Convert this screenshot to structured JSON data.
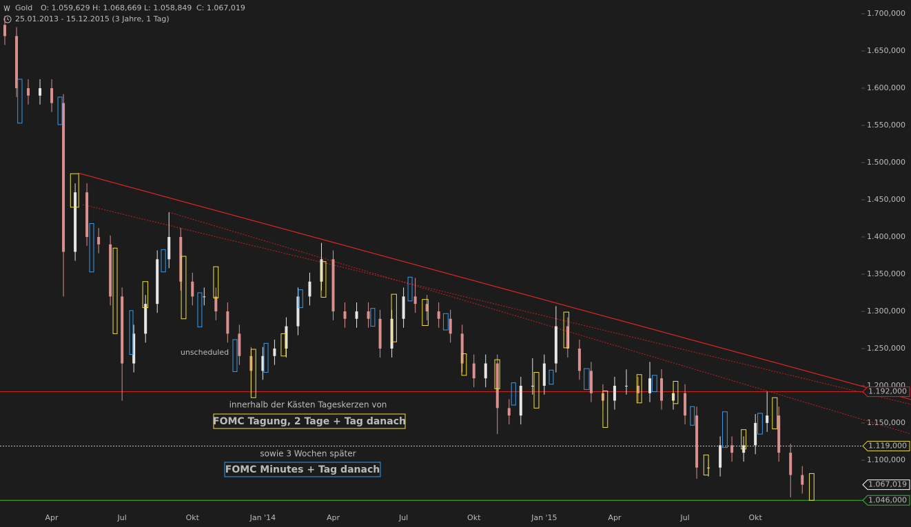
{
  "chart_data": {
    "type": "candlestick",
    "title": "Gold",
    "ohlc_summary": [
      {
        "value": 1059.629,
        "label": "O: 1.059,629"
      },
      {
        "value": 1068.669,
        "label": "H: 1.068,669"
      },
      {
        "value": 1058.849,
        "label": "L: 1.058,849"
      },
      {
        "value": 1067.019,
        "label": "C: 1.067,019"
      }
    ],
    "subtitle": "25.01.2013 - 15.12.2015 (3 Jahre, 1 Tag)",
    "categories": [
      null,
      null,
      null,
      null,
      "Apr",
      null,
      null,
      null,
      null,
      null,
      "Jul",
      null,
      null,
      null,
      null,
      null,
      "Okt",
      null,
      null,
      null,
      null,
      null,
      "Jan '14",
      null,
      null,
      null,
      null,
      null,
      "Apr",
      null,
      null,
      null,
      null,
      null,
      "Jul",
      null,
      null,
      null,
      null,
      null,
      "Okt",
      null,
      null,
      null,
      null,
      null,
      "Jan '15",
      null,
      null,
      null,
      null,
      null,
      "Apr",
      null,
      null,
      null,
      null,
      null,
      "Jul",
      null,
      null,
      null,
      null,
      null,
      "Okt",
      null,
      null,
      null,
      null
    ],
    "open": [
      1685,
      1670,
      1600,
      1590,
      1600,
      1580,
      1380,
      1460,
      1400,
      1390,
      1320,
      1230,
      1270,
      1310,
      1370,
      1400,
      1340,
      1320,
      1320,
      1300,
      1270,
      1240,
      1220,
      1240,
      1250,
      1280,
      1320,
      1340,
      1370,
      1300,
      1290,
      1300,
      1290,
      1250,
      1290,
      1320,
      1310,
      1300,
      1290,
      1270,
      1230,
      1210,
      1230,
      1170,
      1160,
      1200,
      1200,
      1230,
      1280,
      1250,
      1220,
      1190,
      1180,
      1200,
      1200,
      1190,
      1210,
      1180,
      1190,
      1160,
      1090,
      1090,
      1120,
      1110,
      1120,
      1150,
      1160,
      1110,
      1080
    ],
    "high": [
      1697,
      1682,
      1612,
      1612,
      1612,
      1592,
      1472,
      1472,
      1412,
      1402,
      1332,
      1282,
      1322,
      1382,
      1433,
      1412,
      1352,
      1332,
      1332,
      1312,
      1282,
      1252,
      1252,
      1262,
      1292,
      1332,
      1352,
      1392,
      1382,
      1312,
      1312,
      1312,
      1302,
      1302,
      1332,
      1345,
      1322,
      1312,
      1302,
      1282,
      1242,
      1242,
      1242,
      1182,
      1212,
      1237,
      1242,
      1307,
      1292,
      1262,
      1232,
      1202,
      1212,
      1222,
      1212,
      1232,
      1222,
      1202,
      1202,
      1172,
      1102,
      1132,
      1132,
      1132,
      1162,
      1192,
      1172,
      1122,
      1092
    ],
    "low": [
      1658,
      1588,
      1578,
      1578,
      1568,
      1320,
      1368,
      1388,
      1378,
      1308,
      1180,
      1218,
      1258,
      1298,
      1358,
      1328,
      1308,
      1308,
      1288,
      1258,
      1228,
      1190,
      1208,
      1228,
      1238,
      1268,
      1308,
      1328,
      1288,
      1278,
      1278,
      1278,
      1238,
      1238,
      1278,
      1298,
      1288,
      1278,
      1258,
      1218,
      1198,
      1198,
      1135,
      1148,
      1148,
      1188,
      1188,
      1218,
      1238,
      1208,
      1178,
      1168,
      1168,
      1188,
      1178,
      1178,
      1168,
      1168,
      1148,
      1075,
      1078,
      1078,
      1098,
      1098,
      1108,
      1138,
      1098,
      1050,
      1055
    ],
    "close": [
      1670,
      1600,
      1590,
      1600,
      1580,
      1380,
      1460,
      1400,
      1390,
      1320,
      1230,
      1270,
      1310,
      1370,
      1400,
      1340,
      1320,
      1320,
      1300,
      1270,
      1240,
      1220,
      1240,
      1250,
      1280,
      1320,
      1340,
      1370,
      1300,
      1290,
      1300,
      1290,
      1250,
      1290,
      1320,
      1310,
      1300,
      1290,
      1270,
      1230,
      1210,
      1230,
      1170,
      1160,
      1200,
      1200,
      1230,
      1280,
      1250,
      1220,
      1190,
      1180,
      1200,
      1200,
      1190,
      1210,
      1180,
      1190,
      1160,
      1090,
      1090,
      1120,
      1110,
      1120,
      1150,
      1160,
      1110,
      1080,
      1067
    ],
    "up_color": "#e6e6e6",
    "down_color": "#d9908f",
    "xlim": [
      -0.41,
      77.27
    ],
    "ylim": [
      1033.3,
      1718.5
    ],
    "yticks": [
      {
        "value": 1100,
        "label": "1.100,000"
      },
      {
        "value": 1150,
        "label": "1.150,000"
      },
      {
        "value": 1200,
        "label": "1.200,000"
      },
      {
        "value": 1250,
        "label": "1.250,000"
      },
      {
        "value": 1300,
        "label": "1.300,000"
      },
      {
        "value": 1350,
        "label": "1.350,000"
      },
      {
        "value": 1400,
        "label": "1.400,000"
      },
      {
        "value": 1450,
        "label": "1.450,000"
      },
      {
        "value": 1500,
        "label": "1.500,000"
      },
      {
        "value": 1550,
        "label": "1.550,000"
      },
      {
        "value": 1600,
        "label": "1.600,000"
      },
      {
        "value": 1650,
        "label": "1.650,000"
      },
      {
        "value": 1700,
        "label": "1.700,000"
      }
    ],
    "levels": [
      {
        "value": 1192,
        "label": "1.192,000",
        "color": "#e02424",
        "line": "solid"
      },
      {
        "value": 1119,
        "label": "1.119,000",
        "color": "#e8d43c",
        "line": "dotted"
      },
      {
        "value": 1067.019,
        "label": "1.067,019",
        "color": "#ffffff",
        "line": "none"
      },
      {
        "value": 1046,
        "label": "1.046,000",
        "color": "#2fbf2f",
        "line": "solid"
      }
    ],
    "trendlines": [
      {
        "x": [
          6.23,
          77.27
        ],
        "y": [
          1486,
          1181.5
        ],
        "color": "#e02424",
        "line": "solid"
      },
      {
        "x": [
          6.64,
          77.27
        ],
        "y": [
          1443.5,
          1175
        ],
        "color": "#c82020",
        "line": "dotted"
      },
      {
        "x": [
          13.99,
          77.27
        ],
        "y": [
          1433.3,
          1135.2
        ],
        "color": "#c82020",
        "line": "dotted"
      }
    ],
    "boxes": [
      {
        "color": "#f0e040",
        "items": [
          [
            5.6,
            6.3,
            1440,
            1485
          ],
          [
            9.23,
            9.58,
            1270,
            1385
          ],
          [
            11.76,
            12.2,
            1305,
            1340
          ],
          [
            15.05,
            15.45,
            1290,
            1374
          ],
          [
            17.8,
            18.2,
            1318,
            1360
          ],
          [
            21.0,
            21.4,
            1184,
            1249
          ],
          [
            23.56,
            23.97,
            1240,
            1270
          ],
          [
            26.97,
            27.38,
            1319,
            1367
          ],
          [
            32.97,
            33.4,
            1259,
            1323
          ],
          [
            35.6,
            36.1,
            1281,
            1316
          ],
          [
            38.96,
            39.36,
            1214,
            1243
          ],
          [
            41.78,
            42.2,
            1196,
            1235
          ],
          [
            45.13,
            45.54,
            1170,
            1218
          ],
          [
            47.66,
            48.1,
            1251,
            1299
          ],
          [
            51.0,
            51.4,
            1144,
            1193
          ],
          [
            53.9,
            54.3,
            1177,
            1215
          ],
          [
            57.0,
            57.4,
            1176,
            1206
          ],
          [
            59.6,
            60.0,
            1080,
            1107
          ],
          [
            62.8,
            63.2,
            1115,
            1141
          ],
          [
            65.45,
            65.86,
            1142,
            1184
          ],
          [
            68.6,
            69.0,
            1046,
            1082
          ]
        ]
      },
      {
        "color": "#3a9be8",
        "items": [
          [
            1.1,
            1.47,
            1553,
            1612
          ],
          [
            4.53,
            4.88,
            1551,
            1588
          ],
          [
            7.23,
            7.58,
            1353,
            1418
          ],
          [
            10.64,
            10.93,
            1242,
            1301
          ],
          [
            13.34,
            13.7,
            1353,
            1383
          ],
          [
            16.45,
            16.8,
            1279,
            1325
          ],
          [
            19.45,
            19.8,
            1219,
            1262
          ],
          [
            22.1,
            22.45,
            1218,
            1257
          ],
          [
            25.03,
            25.4,
            1305,
            1329
          ],
          [
            31.2,
            31.55,
            1280,
            1304
          ],
          [
            34.38,
            34.73,
            1314,
            1346
          ],
          [
            37.4,
            37.8,
            1275,
            1297
          ],
          [
            43.2,
            43.56,
            1174,
            1204
          ],
          [
            46.42,
            46.77,
            1202,
            1221
          ],
          [
            49.4,
            49.83,
            1195,
            1223
          ],
          [
            55.2,
            55.6,
            1192,
            1214
          ],
          [
            58.46,
            58.8,
            1147,
            1172
          ],
          [
            61.2,
            61.6,
            1117,
            1165
          ],
          [
            64.2,
            64.6,
            1135,
            1163
          ]
        ]
      }
    ],
    "annotations": [
      {
        "text": "unscheduled",
        "color": "#f0e040",
        "boxed": false
      },
      {
        "text": "innerhalb der Kästen Tageskerzen von",
        "color": "#dddddd",
        "boxed": false
      },
      {
        "text": "FOMC Tagung, 2 Tage + Tag danach",
        "color": "#f0e040",
        "boxed": true
      },
      {
        "text": "sowie 3 Wochen später",
        "color": "#dddddd",
        "boxed": false
      },
      {
        "text": "FOMC Minutes + Tag danach",
        "color": "#3a9be8",
        "boxed": true
      }
    ]
  }
}
